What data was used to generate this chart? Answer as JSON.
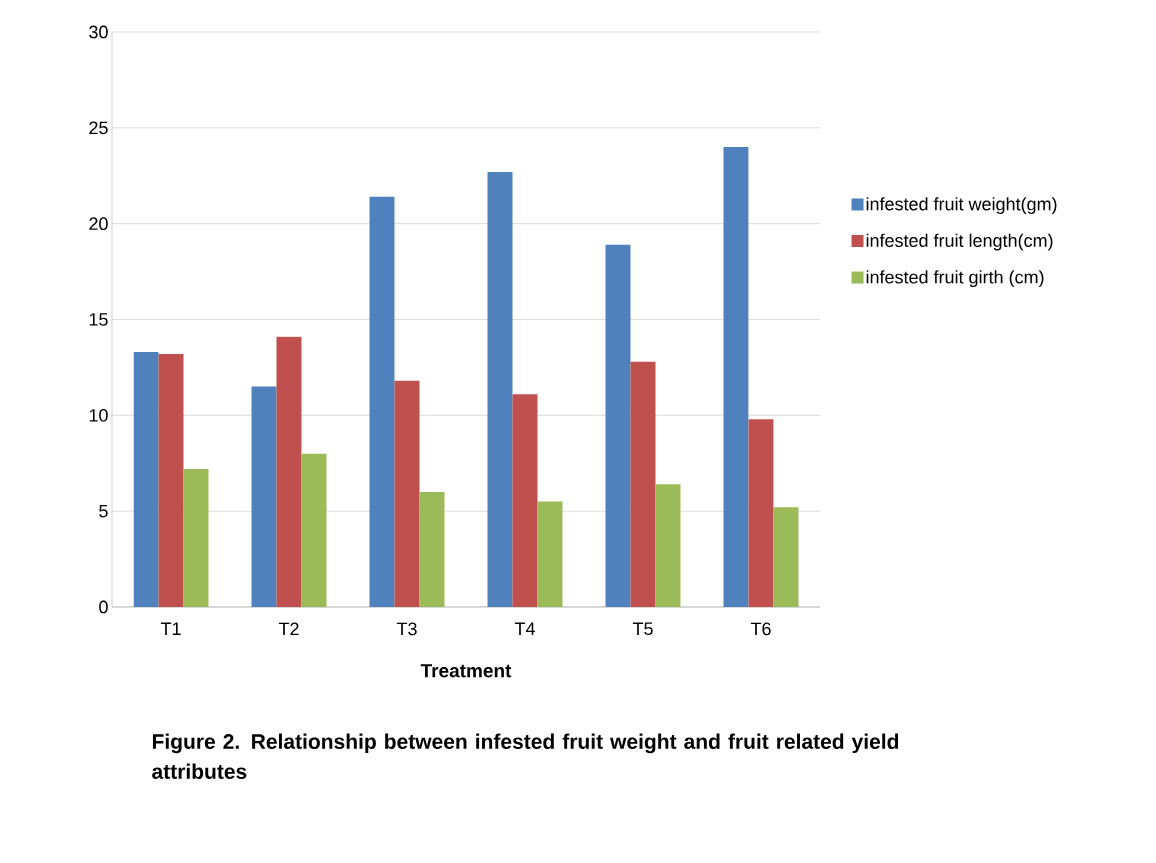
{
  "chart_data": {
    "type": "bar",
    "title": "Figure 2. Relationship between infested fruit weight and fruit related yield attributes",
    "xlabel": "Treatment",
    "categories": [
      "T1",
      "T2",
      "T3",
      "T4",
      "T5",
      "T6"
    ],
    "series": [
      {
        "name": "infested fruit weight(gm)",
        "color": "#4f81bd",
        "values": [
          13.3,
          11.5,
          21.4,
          22.7,
          18.9,
          24.0
        ]
      },
      {
        "name": "infested fruit length(cm)",
        "color": "#c0504d",
        "values": [
          13.2,
          14.1,
          11.8,
          11.1,
          12.8,
          9.8
        ]
      },
      {
        "name": "infested fruit girth (cm)",
        "color": "#9bbb59",
        "values": [
          7.2,
          8.0,
          6.0,
          5.5,
          6.4,
          5.2
        ]
      }
    ],
    "ylim": [
      0,
      30
    ],
    "yticks": [
      0,
      5,
      10,
      15,
      20,
      25,
      30
    ],
    "grid": "y",
    "legend": "right"
  }
}
